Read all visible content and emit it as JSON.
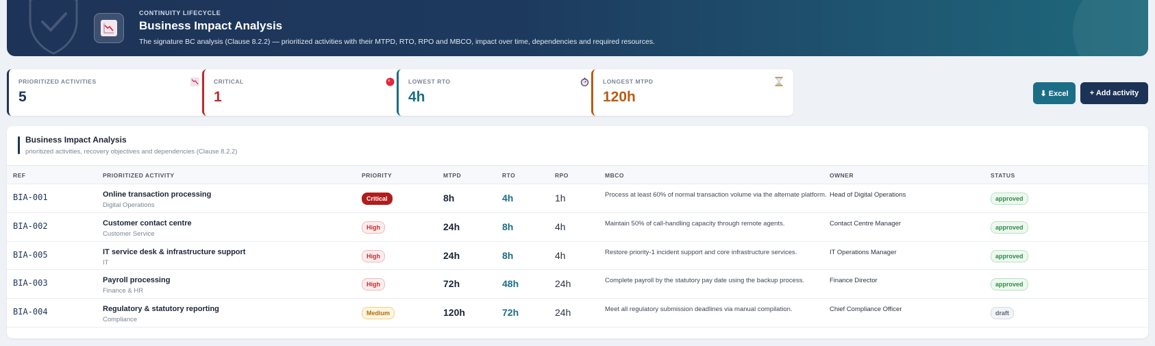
{
  "header": {
    "eyebrow": "CONTINUITY LIFECYCLE",
    "title": "Business Impact Analysis",
    "description": "The signature BC analysis (Clause 8.2.2) — prioritized activities with their MTPD, RTO, RPO and MBCO, impact over time, dependencies and required resources.",
    "icon": "chart-down-icon"
  },
  "kpis": [
    {
      "label": "PRIORITIZED ACTIVITIES",
      "value": "5",
      "icon": "chart-down-icon",
      "color": "#1d3558"
    },
    {
      "label": "CRITICAL",
      "value": "1",
      "icon": "red-circle-icon",
      "color": "#c0282d"
    },
    {
      "label": "LOWEST RTO",
      "value": "4h",
      "icon": "stopwatch-icon",
      "color": "#1b6e86"
    },
    {
      "label": "LONGEST MTPD",
      "value": "120h",
      "icon": "hourglass-icon",
      "color": "#b85c12"
    }
  ],
  "toolbar": {
    "excel_label": "⬇ Excel",
    "add_label": "+ Add activity"
  },
  "table": {
    "title": "Business Impact Analysis",
    "subtitle": "prioritized activities, recovery objectives and dependencies (Clause 8.2.2)",
    "columns": {
      "ref": "REF",
      "activity": "PRIORITIZED ACTIVITY",
      "priority": "PRIORITY",
      "mtpd": "MTPD",
      "rto": "RTO",
      "rpo": "RPO",
      "mbco": "MBCO",
      "owner": "OWNER",
      "status": "STATUS"
    },
    "rows": [
      {
        "ref": "BIA-001",
        "activity": "Online transaction processing",
        "dept": "Digital Operations",
        "priority": "Critical",
        "mtpd": "8h",
        "rto": "4h",
        "rpo": "1h",
        "mbco": "Process at least 60% of normal transaction volume via the alternate platform.",
        "owner": "Head of Digital Operations",
        "status": "approved"
      },
      {
        "ref": "BIA-002",
        "activity": "Customer contact centre",
        "dept": "Customer Service",
        "priority": "High",
        "mtpd": "24h",
        "rto": "8h",
        "rpo": "4h",
        "mbco": "Maintain 50% of call-handling capacity through remote agents.",
        "owner": "Contact Centre Manager",
        "status": "approved"
      },
      {
        "ref": "BIA-005",
        "activity": "IT service desk & infrastructure support",
        "dept": "IT",
        "priority": "High",
        "mtpd": "24h",
        "rto": "8h",
        "rpo": "4h",
        "mbco": "Restore priority-1 incident support and core infrastructure services.",
        "owner": "IT Operations Manager",
        "status": "approved"
      },
      {
        "ref": "BIA-003",
        "activity": "Payroll processing",
        "dept": "Finance & HR",
        "priority": "High",
        "mtpd": "72h",
        "rto": "48h",
        "rpo": "24h",
        "mbco": "Complete payroll by the statutory pay date using the backup process.",
        "owner": "Finance Director",
        "status": "approved"
      },
      {
        "ref": "BIA-004",
        "activity": "Regulatory & statutory reporting",
        "dept": "Compliance",
        "priority": "Medium",
        "mtpd": "120h",
        "rto": "72h",
        "rpo": "24h",
        "mbco": "Meet all regulatory submission deadlines via manual compilation.",
        "owner": "Chief Compliance Officer",
        "status": "draft"
      }
    ]
  }
}
